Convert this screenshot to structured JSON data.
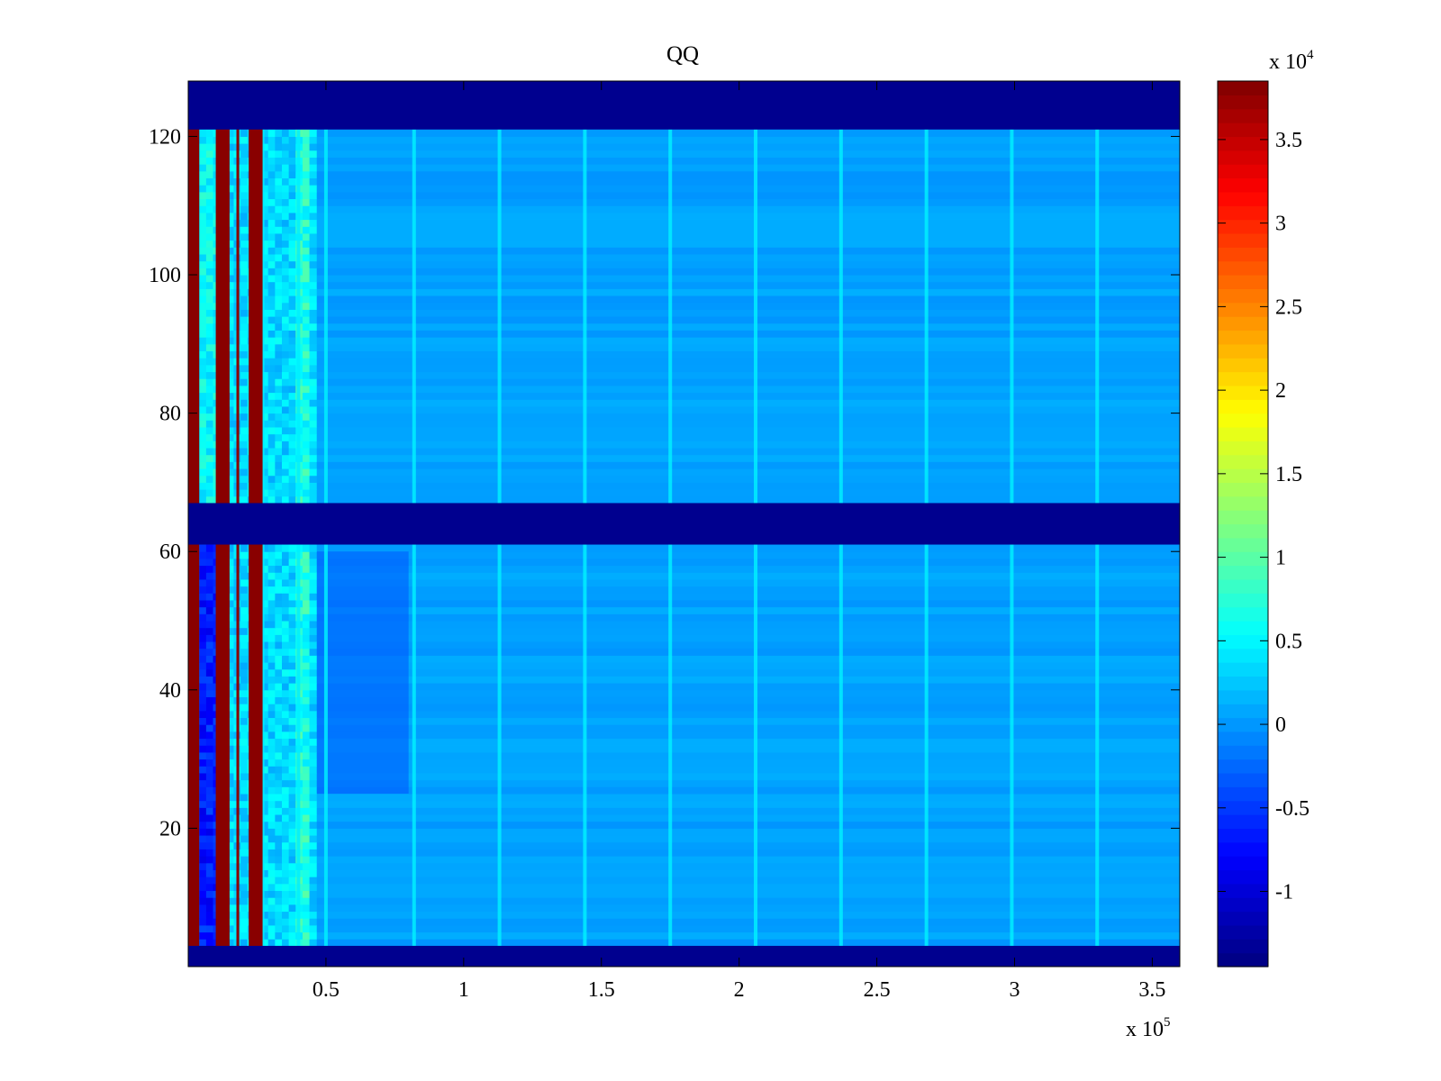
{
  "chart_data": {
    "type": "heatmap",
    "title": "QQ",
    "xlabel": "",
    "ylabel": "",
    "x_exponent_label": {
      "base": "x 10",
      "exp": "5"
    },
    "xlim": [
      0,
      3.6
    ],
    "x_ticks": [
      0.5,
      1,
      1.5,
      2,
      2.5,
      3,
      3.5
    ],
    "x_tick_labels": [
      "0.5",
      "1",
      "1.5",
      "2",
      "2.5",
      "3",
      "3.5"
    ],
    "ylim": [
      0,
      128
    ],
    "y_ticks": [
      20,
      40,
      60,
      80,
      100,
      120
    ],
    "y_tick_labels": [
      "20",
      "40",
      "60",
      "80",
      "100",
      "120"
    ],
    "colormap": "jet",
    "clim": [
      -1.45,
      3.85
    ],
    "colorbar": {
      "position": "right",
      "exponent_label": {
        "base": "x 10",
        "exp": "4"
      },
      "ticks": [
        -1,
        -0.5,
        0,
        0.5,
        1,
        1.5,
        2,
        2.5,
        3,
        3.5
      ],
      "tick_labels": [
        "-1",
        "-0.5",
        "0",
        "0.5",
        "1",
        "1.5",
        "2",
        "2.5",
        "3",
        "3.5"
      ]
    },
    "empty_row_bands": [
      [
        0,
        3
      ],
      [
        61,
        67
      ],
      [
        121,
        128
      ]
    ],
    "background_value": 0.05,
    "high_value_columns": [
      {
        "x": [
          0.0,
          0.04
        ],
        "value": 3.8
      },
      {
        "x": [
          0.1,
          0.15
        ],
        "value": 3.8
      },
      {
        "x": [
          0.175,
          0.185
        ],
        "value": 3.8
      },
      {
        "x": [
          0.22,
          0.25
        ],
        "value": 3.8
      },
      {
        "x": [
          0.22,
          0.27
        ],
        "value": 3.8
      }
    ],
    "bright_column_x": [
      0.27,
      0.4,
      0.5,
      0.82,
      1.13,
      1.44,
      1.75,
      2.06,
      2.37,
      2.68,
      2.99,
      3.3
    ],
    "bright_column_value": 0.45,
    "lower_block_dip": {
      "x": [
        0.45,
        0.8
      ],
      "y": [
        25,
        60
      ],
      "value": -0.35
    },
    "grid": false
  },
  "colors": {
    "low": "#00008f",
    "background": "#1a8cff",
    "high": "#800000"
  }
}
